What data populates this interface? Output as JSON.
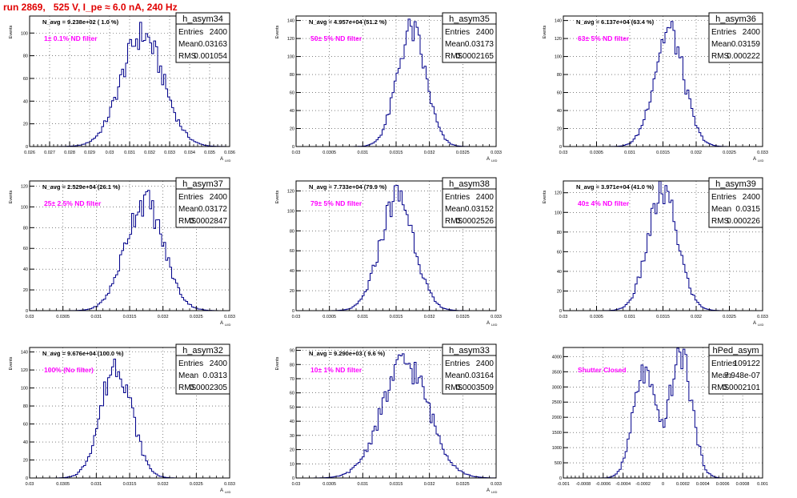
{
  "page_title": "run 2869,   525 V, I_pe ≈ 6.0 nA, 240 Hz",
  "colors": {
    "hist": "#00008b",
    "magenta": "#ff00ff",
    "title": "#e00000",
    "axis": "#000000",
    "grid": "#333333"
  },
  "chart_data": [
    {
      "type": "histogram",
      "name": "h_asym34",
      "navg": "N_avg = 9.238e+02 ( 1.0 %)",
      "filter": "1± 0.1% ND filter",
      "stats": {
        "Entries": "2400",
        "Mean": "0.03163",
        "RMS": "0.001054"
      },
      "xlim": [
        0.026,
        0.036
      ],
      "ylim": [
        0,
        115
      ],
      "xticks": [
        "0.026",
        "0.027",
        "0.028",
        "0.029",
        "0.03",
        "0.031",
        "0.032",
        "0.033",
        "0.034",
        "0.035",
        "0.036"
      ],
      "yticks": [
        "0",
        "20",
        "40",
        "60",
        "80",
        "100"
      ],
      "xlabel": "A",
      "xlabel_sub": "LIID",
      "ylabel": "Events",
      "grid": true,
      "mean": 0.03163,
      "rms": 0.001054,
      "peak": 107,
      "series": [
        {
          "name": "h_asym34"
        }
      ]
    },
    {
      "type": "histogram",
      "name": "h_asym35",
      "navg": "N_avg = 4.957e+04 (51.2 %)",
      "filter": "50± 5% ND filter",
      "stats": {
        "Entries": "2400",
        "Mean": "0.03173",
        "RMS": "0.0002165"
      },
      "xlim": [
        0.03,
        0.033
      ],
      "ylim": [
        0,
        145
      ],
      "xticks": [
        "0.03",
        "0.0305",
        "0.031",
        "0.0315",
        "0.032",
        "0.0325",
        "0.033"
      ],
      "yticks": [
        "0",
        "20",
        "40",
        "60",
        "80",
        "100",
        "120",
        "140"
      ],
      "xlabel": "A",
      "xlabel_sub": "LIID",
      "ylabel": "Events",
      "grid": true,
      "mean": 0.03173,
      "rms": 0.0002165,
      "peak": 140
    },
    {
      "type": "histogram",
      "name": "h_asym36",
      "navg": "N_avg = 6.137e+04 (63.4 %)",
      "filter": "63± 5% ND filter",
      "stats": {
        "Entries": "2400",
        "Mean": "0.03159",
        "RMS": "0.000222"
      },
      "xlim": [
        0.03,
        0.033
      ],
      "ylim": [
        0,
        145
      ],
      "xticks": [
        "0.03",
        "0.0305",
        "0.031",
        "0.0315",
        "0.032",
        "0.0325",
        "0.033"
      ],
      "yticks": [
        "0",
        "20",
        "40",
        "60",
        "80",
        "100",
        "120",
        "140"
      ],
      "xlabel": "A",
      "xlabel_sub": "LIID",
      "ylabel": "Events",
      "grid": true,
      "mean": 0.03159,
      "rms": 0.000222,
      "peak": 140
    },
    {
      "type": "histogram",
      "name": "h_asym37",
      "navg": "N_avg = 2.529e+04 (26.1 %)",
      "filter": "25± 2.5% ND filter",
      "stats": {
        "Entries": "2400",
        "Mean": "0.03172",
        "RMS": "0.0002847"
      },
      "xlim": [
        0.03,
        0.033
      ],
      "ylim": [
        0,
        125
      ],
      "xticks": [
        "0.03",
        "0.0305",
        "0.031",
        "0.0315",
        "0.032",
        "0.0325",
        "0.033"
      ],
      "yticks": [
        "0",
        "20",
        "40",
        "60",
        "80",
        "100",
        "120"
      ],
      "xlabel": "A",
      "xlabel_sub": "LIID",
      "ylabel": "Events",
      "grid": true,
      "mean": 0.03172,
      "rms": 0.0002847,
      "peak": 115
    },
    {
      "type": "histogram",
      "name": "h_asym38",
      "navg": "N_avg = 7.733e+04 (79.9 %)",
      "filter": "79± 5% ND filter",
      "stats": {
        "Entries": "2400",
        "Mean": "0.03152",
        "RMS": "0.0002526"
      },
      "xlim": [
        0.03,
        0.033
      ],
      "ylim": [
        0,
        130
      ],
      "xticks": [
        "0.03",
        "0.0305",
        "0.031",
        "0.0315",
        "0.032",
        "0.0325",
        "0.033"
      ],
      "yticks": [
        "0",
        "20",
        "40",
        "60",
        "80",
        "100",
        "120"
      ],
      "xlabel": "A",
      "xlabel_sub": "LIID",
      "ylabel": "Events",
      "grid": true,
      "mean": 0.03152,
      "rms": 0.0002526,
      "peak": 125
    },
    {
      "type": "histogram",
      "name": "h_asym39",
      "navg": "N_avg = 3.971e+04 (41.0 %)",
      "filter": "40± 4% ND filter",
      "stats": {
        "Entries": "2400",
        "Mean": "0.0315",
        "RMS": "0.000226"
      },
      "xlim": [
        0.03,
        0.033
      ],
      "ylim": [
        0,
        132
      ],
      "xticks": [
        "0.03",
        "0.0305",
        "0.031",
        "0.0315",
        "0.032",
        "0.0325",
        "0.033"
      ],
      "yticks": [
        "0",
        "20",
        "40",
        "60",
        "80",
        "100",
        "120"
      ],
      "xlabel": "A",
      "xlabel_sub": "LIID",
      "ylabel": "Events",
      "grid": true,
      "mean": 0.0315,
      "rms": 0.000226,
      "peak": 130
    },
    {
      "type": "histogram",
      "name": "h_asym32",
      "navg": "N_avg = 9.676e+04 (100.0 %)",
      "filter": "100% (No filter)",
      "stats": {
        "Entries": "2400",
        "Mean": "0.0313",
        "RMS": "0.0002305"
      },
      "xlim": [
        0.03,
        0.033
      ],
      "ylim": [
        0,
        145
      ],
      "xticks": [
        "0.03",
        "0.0305",
        "0.031",
        "0.0315",
        "0.032",
        "0.0325",
        "0.033"
      ],
      "yticks": [
        "0",
        "20",
        "40",
        "60",
        "80",
        "100",
        "120",
        "140"
      ],
      "xlabel": "A",
      "xlabel_sub": "LIID",
      "ylabel": "Events",
      "grid": true,
      "mean": 0.0313,
      "rms": 0.0002305,
      "peak": 138
    },
    {
      "type": "histogram",
      "name": "h_asym33",
      "navg": "N_avg = 9.290e+03 ( 9.6 %)",
      "filter": "10± 1% ND filter",
      "stats": {
        "Entries": "2400",
        "Mean": "0.03164",
        "RMS": "0.0003509"
      },
      "xlim": [
        0.03,
        0.033
      ],
      "ylim": [
        0,
        92
      ],
      "xticks": [
        "0.03",
        "0.0305",
        "0.031",
        "0.0315",
        "0.032",
        "0.0325",
        "0.033"
      ],
      "yticks": [
        "0",
        "10",
        "20",
        "30",
        "40",
        "50",
        "60",
        "70",
        "80",
        "90"
      ],
      "xlabel": "A",
      "xlabel_sub": "LIID",
      "ylabel": "Events",
      "grid": true,
      "mean": 0.03164,
      "rms": 0.0003509,
      "peak": 88
    },
    {
      "type": "histogram",
      "name": "hPed_asym",
      "navg": "",
      "filter": "Shutter Closed",
      "stats": {
        "Entries": "109122",
        "Mean": "7.948e-07",
        "RMS": "0.0002101"
      },
      "xlim": [
        -0.001,
        0.001
      ],
      "ylim": [
        0,
        4300
      ],
      "xticks": [
        "-0.001",
        "-0.0008",
        "-0.0006",
        "-0.0004",
        "-0.0002",
        "0",
        "0.0002",
        "0.0004",
        "0.0006",
        "0.0008",
        "0.001"
      ],
      "yticks": [
        "0",
        "500",
        "1000",
        "1500",
        "2000",
        "2500",
        "3000",
        "3500",
        "4000"
      ],
      "xlabel": "",
      "xlabel_sub": "",
      "ylabel": "",
      "grid": true,
      "mean": 8e-07,
      "rms": 0.0002101,
      "peak": 4100,
      "bimodal": true
    }
  ]
}
